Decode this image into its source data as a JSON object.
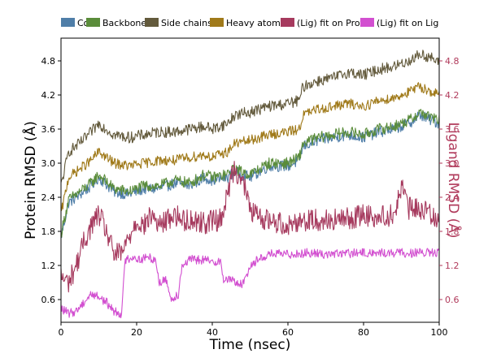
{
  "chart_data": {
    "type": "line",
    "xlabel": "Time (nsec)",
    "ylabel": "Protein RMSD (Å)",
    "y2label": "Ligand RMSD (Å)",
    "xlim": [
      0,
      100
    ],
    "ylim": [
      0.2,
      5.2
    ],
    "y2lim": [
      0.2,
      5.2
    ],
    "x_ticks": [
      "0",
      "20",
      "40",
      "60",
      "80",
      "100"
    ],
    "y_ticks": [
      "0.6",
      "1.2",
      "1.8",
      "2.4",
      "3.0",
      "3.6",
      "4.2",
      "4.8"
    ],
    "y2_ticks": [
      "0.6",
      "1.2",
      "1.8",
      "2.4",
      "3.0",
      "3.6",
      "4.2",
      "4.8"
    ],
    "legend_position": "top",
    "colors": {
      "ca": "#4f7ea8",
      "backbone": "#5a8c3a",
      "sidechains": "#635a3c",
      "heavy": "#a07a1a",
      "lig_prot": "#a63a5e",
      "lig_lig": "#d24fd0",
      "right_axis": "#b03a5b"
    },
    "series": [
      {
        "name": "Cα",
        "axis": "left",
        "color": "#4f7ea8",
        "x": [
          0,
          2,
          5,
          8,
          10,
          14,
          18,
          22,
          26,
          30,
          34,
          38,
          40,
          44,
          46,
          50,
          55,
          60,
          63,
          64,
          68,
          72,
          76,
          80,
          84,
          88,
          92,
          95,
          98,
          100
        ],
        "values": [
          1.7,
          2.3,
          2.45,
          2.6,
          2.75,
          2.5,
          2.45,
          2.55,
          2.55,
          2.65,
          2.6,
          2.75,
          2.7,
          2.75,
          2.85,
          2.75,
          2.95,
          2.95,
          3.05,
          3.3,
          3.4,
          3.45,
          3.5,
          3.45,
          3.55,
          3.6,
          3.7,
          3.85,
          3.75,
          3.7
        ],
        "noise": 0.1
      },
      {
        "name": "Backbone",
        "axis": "left",
        "color": "#5a8c3a",
        "x": [
          0,
          2,
          5,
          8,
          10,
          14,
          18,
          22,
          26,
          30,
          34,
          38,
          40,
          44,
          46,
          50,
          55,
          60,
          63,
          64,
          68,
          72,
          76,
          80,
          84,
          88,
          92,
          95,
          98,
          100
        ],
        "values": [
          1.75,
          2.35,
          2.5,
          2.65,
          2.8,
          2.55,
          2.5,
          2.6,
          2.6,
          2.7,
          2.65,
          2.8,
          2.75,
          2.8,
          2.9,
          2.8,
          3.0,
          3.0,
          3.1,
          3.35,
          3.45,
          3.5,
          3.55,
          3.5,
          3.6,
          3.65,
          3.75,
          3.9,
          3.8,
          3.75
        ],
        "noise": 0.1
      },
      {
        "name": "Side chains",
        "axis": "left",
        "color": "#635a3c",
        "x": [
          0,
          2,
          5,
          8,
          10,
          14,
          18,
          22,
          26,
          30,
          34,
          38,
          40,
          44,
          46,
          50,
          55,
          60,
          63,
          64,
          68,
          72,
          76,
          80,
          84,
          88,
          92,
          95,
          98,
          100
        ],
        "values": [
          2.6,
          3.2,
          3.35,
          3.55,
          3.7,
          3.5,
          3.45,
          3.5,
          3.55,
          3.55,
          3.6,
          3.65,
          3.6,
          3.7,
          3.85,
          3.9,
          4.0,
          4.05,
          4.1,
          4.35,
          4.45,
          4.5,
          4.6,
          4.55,
          4.65,
          4.7,
          4.8,
          4.92,
          4.85,
          4.75
        ],
        "noise": 0.1
      },
      {
        "name": "Heavy atoms",
        "axis": "left",
        "color": "#a07a1a",
        "x": [
          0,
          2,
          5,
          8,
          10,
          14,
          18,
          22,
          26,
          30,
          34,
          38,
          40,
          44,
          46,
          50,
          55,
          60,
          63,
          64,
          68,
          72,
          76,
          80,
          84,
          88,
          92,
          95,
          98,
          100
        ],
        "values": [
          2.1,
          2.75,
          2.9,
          3.05,
          3.2,
          3.0,
          2.95,
          3.0,
          3.05,
          3.05,
          3.1,
          3.15,
          3.1,
          3.2,
          3.35,
          3.4,
          3.5,
          3.55,
          3.6,
          3.85,
          3.95,
          4.0,
          4.05,
          4.0,
          4.1,
          4.15,
          4.25,
          4.35,
          4.25,
          4.2
        ],
        "noise": 0.09
      },
      {
        "name": "(Lig) fit on Prot",
        "axis": "right",
        "color": "#a63a5e",
        "x": [
          0,
          2,
          4,
          6,
          8,
          10,
          12,
          14,
          16,
          18,
          20,
          22,
          24,
          26,
          28,
          30,
          32,
          35,
          38,
          40,
          42,
          44,
          45,
          46,
          48,
          50,
          52,
          55,
          58,
          60,
          63,
          66,
          70,
          74,
          78,
          80,
          84,
          88,
          89,
          90,
          92,
          95,
          98,
          100
        ],
        "values": [
          1.0,
          0.9,
          1.2,
          1.6,
          1.9,
          2.1,
          1.8,
          1.4,
          1.4,
          1.7,
          2.0,
          1.9,
          2.1,
          1.9,
          2.0,
          2.1,
          2.0,
          2.0,
          1.95,
          2.0,
          2.0,
          2.4,
          2.8,
          2.9,
          2.7,
          2.2,
          2.05,
          2.0,
          1.95,
          1.9,
          2.0,
          2.0,
          2.0,
          2.0,
          2.05,
          2.1,
          2.05,
          2.1,
          2.3,
          2.6,
          2.2,
          2.2,
          2.1,
          2.05
        ],
        "noise": 0.2
      },
      {
        "name": "(Lig) fit on Lig",
        "axis": "right",
        "color": "#d24fd0",
        "x": [
          0,
          2,
          4,
          6,
          8,
          10,
          12,
          14,
          16,
          17,
          19,
          21,
          23,
          25,
          26,
          28,
          29,
          31,
          32,
          34,
          36,
          38,
          40,
          42,
          43,
          45,
          48,
          50,
          52,
          55,
          60,
          65,
          70,
          80,
          90,
          100
        ],
        "values": [
          0.45,
          0.35,
          0.4,
          0.55,
          0.7,
          0.65,
          0.55,
          0.4,
          0.35,
          1.3,
          1.35,
          1.3,
          1.35,
          1.3,
          0.9,
          0.95,
          0.6,
          0.7,
          1.2,
          1.3,
          1.3,
          1.3,
          1.25,
          1.3,
          0.95,
          0.95,
          0.85,
          1.2,
          1.3,
          1.4,
          1.4,
          1.42,
          1.4,
          1.42,
          1.42,
          1.42
        ],
        "noise": 0.08
      }
    ]
  }
}
